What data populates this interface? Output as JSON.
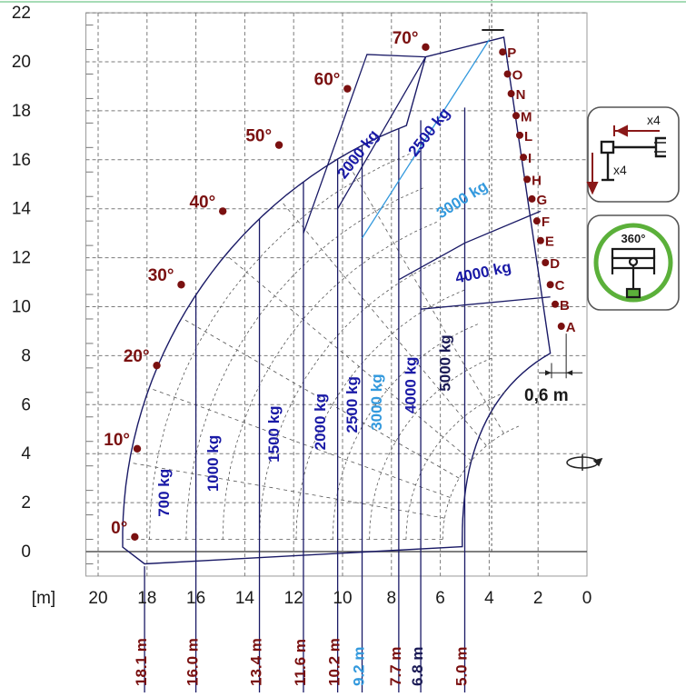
{
  "chart_data": {
    "type": "load-chart",
    "x_axis": {
      "unit_label": "[m]",
      "ticks": [
        "20",
        "18",
        "16",
        "14",
        "12",
        "10",
        "8",
        "6",
        "4",
        "2",
        "0"
      ],
      "range": [
        20.5,
        0
      ]
    },
    "y_axis": {
      "ticks": [
        "0",
        "2",
        "4",
        "6",
        "8",
        "10",
        "12",
        "14",
        "16",
        "18",
        "20",
        "22"
      ],
      "range": [
        -1,
        22
      ]
    },
    "grid": true,
    "angles": [
      {
        "label": "0°",
        "x": 18.5,
        "y": 0.6
      },
      {
        "label": "10°",
        "x": 18.4,
        "y": 4.2
      },
      {
        "label": "20°",
        "x": 17.6,
        "y": 7.6
      },
      {
        "label": "30°",
        "x": 16.6,
        "y": 10.9
      },
      {
        "label": "40°",
        "x": 14.9,
        "y": 13.9
      },
      {
        "label": "50°",
        "x": 12.6,
        "y": 16.6
      },
      {
        "label": "60°",
        "x": 9.8,
        "y": 18.9
      },
      {
        "label": "70°",
        "x": 6.6,
        "y": 20.6
      }
    ],
    "extension_points": [
      {
        "label": "A",
        "x": 1.05,
        "y": 9.2
      },
      {
        "label": "B",
        "x": 1.3,
        "y": 10.1
      },
      {
        "label": "C",
        "x": 1.5,
        "y": 10.9
      },
      {
        "label": "D",
        "x": 1.7,
        "y": 11.8
      },
      {
        "label": "E",
        "x": 1.9,
        "y": 12.7
      },
      {
        "label": "F",
        "x": 2.05,
        "y": 13.5
      },
      {
        "label": "G",
        "x": 2.25,
        "y": 14.4
      },
      {
        "label": "H",
        "x": 2.45,
        "y": 15.2
      },
      {
        "label": "I",
        "x": 2.6,
        "y": 16.1
      },
      {
        "label": "L",
        "x": 2.75,
        "y": 17.0
      },
      {
        "label": "M",
        "x": 2.9,
        "y": 17.8
      },
      {
        "label": "N",
        "x": 3.1,
        "y": 18.7
      },
      {
        "label": "O",
        "x": 3.25,
        "y": 19.5
      },
      {
        "label": "P",
        "x": 3.45,
        "y": 20.4
      }
    ],
    "vertical_capacities": [
      {
        "label": "700 kg",
        "x": 17.1,
        "y": 2.4,
        "color": "#1a1aa6"
      },
      {
        "label": "1000 kg",
        "x": 15.1,
        "y": 3.6,
        "color": "#1a1aa6"
      },
      {
        "label": "1500 kg",
        "x": 12.6,
        "y": 4.8,
        "color": "#1a1aa6"
      },
      {
        "label": "2000 kg",
        "x": 10.7,
        "y": 5.3,
        "color": "#1a1aa6"
      },
      {
        "label": "2500 kg",
        "x": 9.4,
        "y": 6.0,
        "color": "#1a1aa6"
      },
      {
        "label": "3000 kg",
        "x": 8.4,
        "y": 6.1,
        "color": "#3399dd"
      },
      {
        "label": "4000 kg",
        "x": 7.0,
        "y": 6.8,
        "color": "#1a1aa6"
      },
      {
        "label": "5000 kg",
        "x": 5.6,
        "y": 7.7,
        "color": "#1a1a55"
      }
    ],
    "angled_capacities": [
      {
        "label": "2000 kg",
        "x": 9.2,
        "y": 16.1,
        "rot": -52,
        "color": "#1a1aa6"
      },
      {
        "label": "2500 kg",
        "x": 6.3,
        "y": 17.0,
        "rot": -52,
        "color": "#1a1aa6"
      },
      {
        "label": "3000 kg",
        "x": 5.0,
        "y": 14.2,
        "rot": -32,
        "color": "#3399dd"
      },
      {
        "label": "4000 kg",
        "x": 4.2,
        "y": 11.2,
        "rot": -12,
        "color": "#1a1aa6"
      }
    ],
    "distances": [
      {
        "label": "18.1 m",
        "x": 18.1,
        "color": "#7a1010"
      },
      {
        "label": "16.0 m",
        "x": 16.0,
        "color": "#7a1010"
      },
      {
        "label": "13.4 m",
        "x": 13.4,
        "color": "#7a1010"
      },
      {
        "label": "11.6 m",
        "x": 11.6,
        "color": "#7a1010"
      },
      {
        "label": "10.2 m",
        "x": 10.2,
        "color": "#7a1010"
      },
      {
        "label": "9.2 m",
        "x": 9.2,
        "color": "#3399dd"
      },
      {
        "label": "7.7 m",
        "x": 7.7,
        "color": "#7a1010"
      },
      {
        "label": "6.8 m",
        "x": 6.8,
        "color": "#1a1a55"
      },
      {
        "label": "5.0 m",
        "x": 5.0,
        "color": "#7a1010"
      }
    ],
    "offset_label": "0,6 m",
    "outriggers_label": "x4",
    "rotation_label": "360°",
    "colors": {
      "angle": "#7a1010",
      "boom": "#1a1a66",
      "capacity": "#1a1aa6",
      "capacity_alt": "#3399dd",
      "badge_ring": "#55aa33"
    },
    "icons": [
      "outrigger-icon",
      "rotation-360-icon",
      "rotate-arrow-icon"
    ]
  }
}
